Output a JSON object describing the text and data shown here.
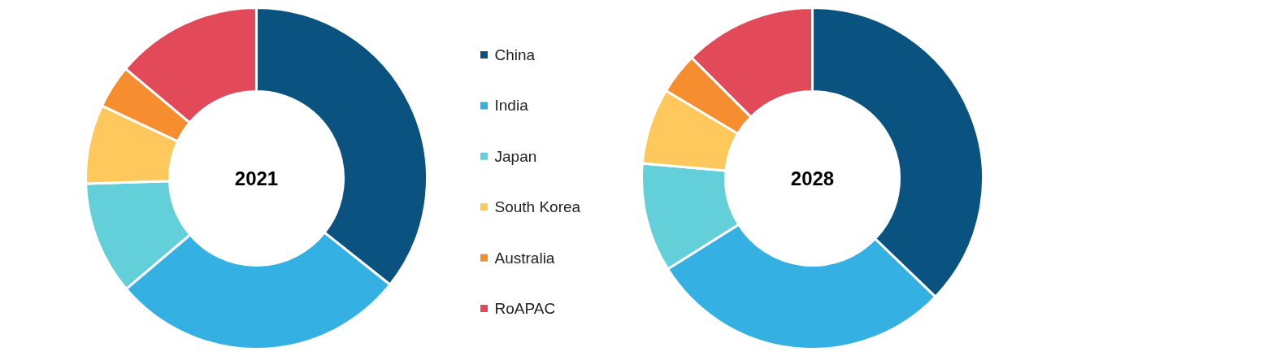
{
  "chart_data": [
    {
      "type": "donut",
      "title": "2021",
      "categories": [
        "China",
        "India",
        "Japan",
        "South Korea",
        "Australia",
        "RoAPAC"
      ],
      "values": [
        35.7,
        28.1,
        10.7,
        7.5,
        4.1,
        13.9
      ],
      "colors": [
        "#0a5280",
        "#35b0e2",
        "#62cfd9",
        "#fec85d",
        "#f68d2e",
        "#e24a59"
      ],
      "legend": "right"
    },
    {
      "type": "donut",
      "title": "2028",
      "categories": [
        null,
        null,
        null,
        null,
        null,
        null
      ],
      "values": [
        37.2,
        28.9,
        10.3,
        7.2,
        3.9,
        12.5
      ],
      "colors": [
        "#0a5280",
        "#35b0e2",
        "#62cfd9",
        "#fec85d",
        "#f68d2e",
        "#e24a59"
      ]
    }
  ]
}
